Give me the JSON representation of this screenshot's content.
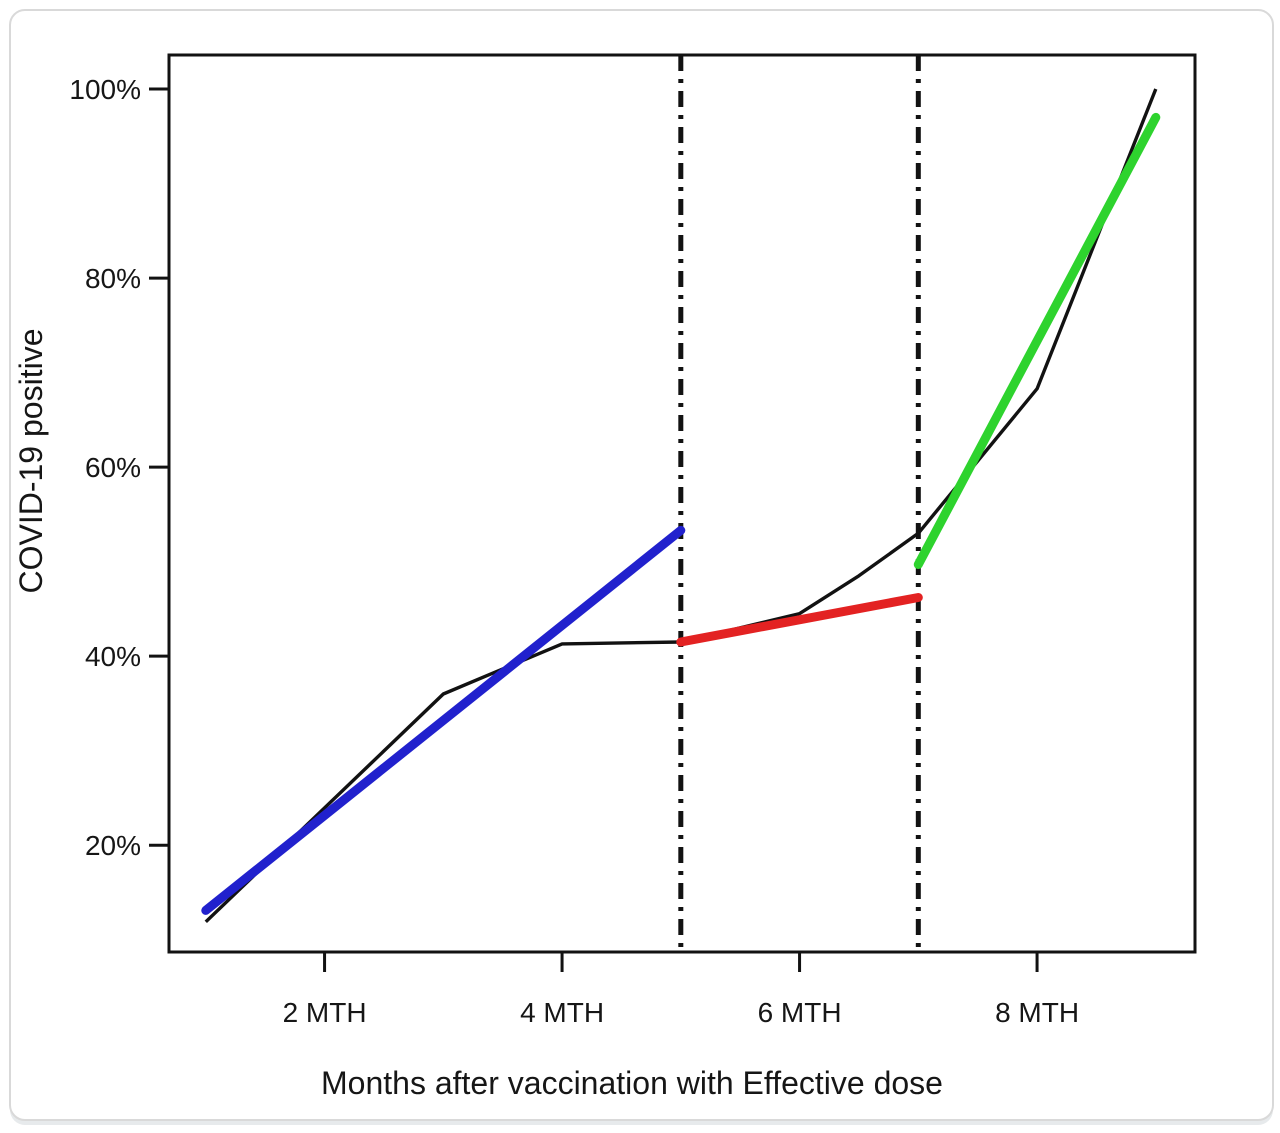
{
  "chart_data": {
    "type": "line",
    "title": "",
    "xlabel": "Months after vaccination with Effective dose",
    "ylabel": "COVID-19 positive",
    "x_unit": "months",
    "y_unit": "percent",
    "xlim": [
      0.69,
      9.33
    ],
    "ylim": [
      8.7,
      103.6
    ],
    "grid": false,
    "legend": "none",
    "x_ticks": [
      {
        "value": 2,
        "label": "2 MTH"
      },
      {
        "value": 4,
        "label": "4 MTH"
      },
      {
        "value": 6,
        "label": "6 MTH"
      },
      {
        "value": 8,
        "label": "8 MTH"
      }
    ],
    "y_ticks": [
      {
        "value": 20,
        "label": "20%"
      },
      {
        "value": 40,
        "label": "40%"
      },
      {
        "value": 60,
        "label": "60%"
      },
      {
        "value": 80,
        "label": "80%"
      },
      {
        "value": 100,
        "label": "100%"
      }
    ],
    "series": [
      {
        "name": "observed-covid19-positive",
        "color": "#121212",
        "stroke_width": 3.4,
        "linecap": "butt",
        "x": [
          1,
          3,
          4,
          5,
          6,
          6.5,
          7,
          8,
          9
        ],
        "y": [
          11.9,
          36,
          41.3,
          41.5,
          44.5,
          48.5,
          53,
          68.3,
          100
        ]
      },
      {
        "name": "trend-months-1-5",
        "color": "#2121cd",
        "stroke_width": 9,
        "linecap": "round",
        "x": [
          1,
          5
        ],
        "y": [
          13.1,
          53.3
        ]
      },
      {
        "name": "trend-months-5-7",
        "color": "#e32222",
        "stroke_width": 9,
        "linecap": "round",
        "x": [
          5,
          7
        ],
        "y": [
          41.5,
          46.2
        ]
      },
      {
        "name": "trend-months-7-9",
        "color": "#2ed32e",
        "stroke_width": 9,
        "linecap": "round",
        "x": [
          7,
          9
        ],
        "y": [
          49.7,
          97
        ]
      }
    ],
    "reference_lines": [
      {
        "axis": "x",
        "value": 5,
        "style": "dash-dot",
        "color": "#121212",
        "stroke_width": 5
      },
      {
        "axis": "x",
        "value": 7,
        "style": "dash-dot",
        "color": "#121212",
        "stroke_width": 5
      }
    ]
  }
}
